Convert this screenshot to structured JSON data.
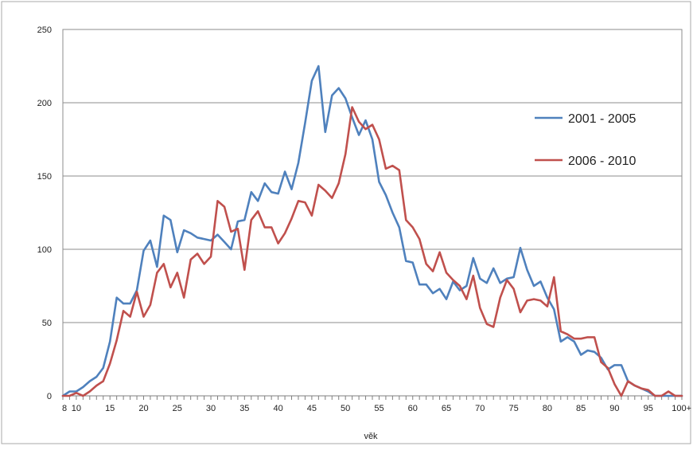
{
  "chart_data": {
    "type": "line",
    "xlabel": "věk",
    "ylabel": "",
    "title": "",
    "ylim": [
      0,
      250
    ],
    "y_ticks": [
      0,
      50,
      100,
      150,
      200,
      250
    ],
    "x_tick_labels": [
      "8",
      "10",
      "15",
      "20",
      "25",
      "30",
      "35",
      "40",
      "45",
      "50",
      "55",
      "60",
      "65",
      "70",
      "75",
      "80",
      "85",
      "90",
      "95",
      "100+"
    ],
    "x_tick_values": [
      8,
      10,
      15,
      20,
      25,
      30,
      35,
      40,
      45,
      50,
      55,
      60,
      65,
      70,
      75,
      80,
      85,
      90,
      95,
      100
    ],
    "grid": "horizontal",
    "legend_position": "right",
    "x": [
      8,
      9,
      10,
      11,
      12,
      13,
      14,
      15,
      16,
      17,
      18,
      19,
      20,
      21,
      22,
      23,
      24,
      25,
      26,
      27,
      28,
      29,
      30,
      31,
      32,
      33,
      34,
      35,
      36,
      37,
      38,
      39,
      40,
      41,
      42,
      43,
      44,
      45,
      46,
      47,
      48,
      49,
      50,
      51,
      52,
      53,
      54,
      55,
      56,
      57,
      58,
      59,
      60,
      61,
      62,
      63,
      64,
      65,
      66,
      67,
      68,
      69,
      70,
      71,
      72,
      73,
      74,
      75,
      76,
      77,
      78,
      79,
      80,
      81,
      82,
      83,
      84,
      85,
      86,
      87,
      88,
      89,
      90,
      91,
      92,
      93,
      94,
      95,
      96,
      97,
      98,
      99,
      100
    ],
    "series": [
      {
        "name": "2001 - 2005",
        "color": "#4f81bd",
        "values": [
          0,
          3,
          3,
          6,
          10,
          13,
          19,
          37,
          67,
          63,
          63,
          72,
          99,
          106,
          88,
          123,
          120,
          98,
          113,
          111,
          108,
          107,
          106,
          110,
          105,
          100,
          119,
          120,
          139,
          133,
          145,
          139,
          138,
          153,
          141,
          159,
          186,
          215,
          225,
          180,
          205,
          210,
          203,
          190,
          178,
          188,
          175,
          146,
          137,
          125,
          115,
          92,
          91,
          76,
          76,
          70,
          73,
          66,
          78,
          72,
          75,
          94,
          80,
          77,
          87,
          77,
          80,
          81,
          101,
          86,
          75,
          78,
          67,
          59,
          37,
          40,
          37,
          28,
          31,
          30,
          26,
          18,
          21,
          21,
          10,
          7,
          5,
          3,
          0,
          0,
          0,
          0,
          0
        ]
      },
      {
        "name": "2006 - 2010",
        "color": "#c0504d",
        "values": [
          0,
          0,
          2,
          0,
          3,
          7,
          10,
          22,
          38,
          58,
          54,
          71,
          54,
          62,
          84,
          90,
          74,
          84,
          67,
          93,
          97,
          90,
          95,
          133,
          129,
          112,
          114,
          86,
          120,
          126,
          115,
          115,
          104,
          111,
          121,
          133,
          132,
          123,
          144,
          140,
          135,
          145,
          165,
          197,
          187,
          182,
          185,
          175,
          155,
          157,
          154,
          120,
          115,
          107,
          90,
          85,
          98,
          84,
          79,
          75,
          66,
          82,
          60,
          49,
          47,
          67,
          79,
          73,
          57,
          65,
          66,
          65,
          61,
          81,
          44,
          42,
          39,
          39,
          40,
          40,
          23,
          19,
          8,
          0,
          10,
          7,
          5,
          4,
          0,
          0,
          3,
          0,
          0
        ]
      }
    ]
  }
}
